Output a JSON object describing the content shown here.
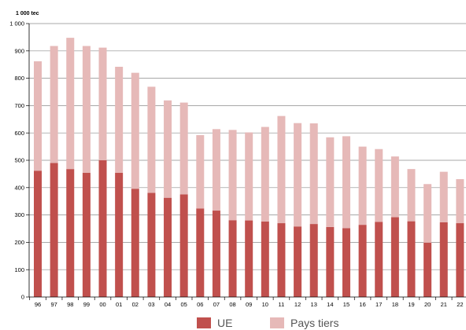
{
  "chart_data": {
    "type": "bar",
    "stacked": true,
    "unit_label": "1 000 tec",
    "categories": [
      "96",
      "97",
      "98",
      "99",
      "00",
      "01",
      "02",
      "03",
      "04",
      "05",
      "06",
      "07",
      "08",
      "09",
      "10",
      "11",
      "12",
      "13",
      "14",
      "15",
      "16",
      "17",
      "18",
      "19",
      "20",
      "21",
      "22"
    ],
    "series": [
      {
        "name": "UE",
        "color": "#c0504d",
        "values": [
          462,
          490,
          468,
          454,
          500,
          454,
          396,
          381,
          363,
          375,
          324,
          316,
          281,
          280,
          276,
          270,
          258,
          267,
          256,
          252,
          264,
          275,
          292,
          277,
          199,
          273,
          270
        ]
      },
      {
        "name": "Pays tiers",
        "color": "#e6b9b8",
        "values": [
          400,
          428,
          480,
          464,
          412,
          388,
          424,
          388,
          356,
          336,
          268,
          298,
          330,
          322,
          346,
          392,
          378,
          368,
          328,
          336,
          286,
          266,
          222,
          191,
          214,
          185,
          161
        ]
      }
    ],
    "ylim": [
      0,
      1000
    ],
    "yticks": [
      0,
      100,
      200,
      300,
      400,
      500,
      600,
      700,
      800,
      900,
      1000
    ],
    "ytick_labels": [
      "0",
      "100",
      "200",
      "300",
      "400",
      "500",
      "600",
      "700",
      "800",
      "900",
      "1 000"
    ],
    "grid": true,
    "legend_position": "bottom"
  }
}
